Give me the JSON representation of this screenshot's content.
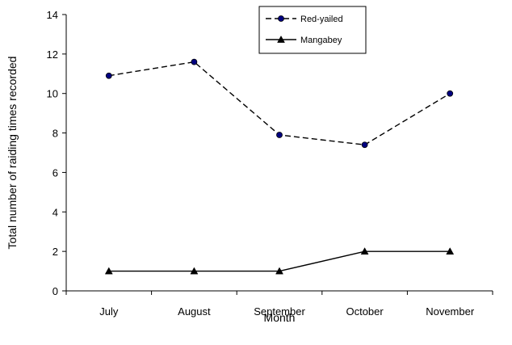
{
  "chart_data": {
    "type": "line",
    "title": "",
    "xlabel": "Month",
    "ylabel": "Total number of raiding times recorded",
    "categories": [
      "July",
      "August",
      "September",
      "October",
      "November"
    ],
    "ylim": [
      0,
      14
    ],
    "yticks": [
      0,
      2,
      4,
      6,
      8,
      10,
      12,
      14
    ],
    "grid": false,
    "legend_position": "top-right",
    "series": [
      {
        "name": "Red-yailed",
        "values": [
          10.9,
          11.6,
          7.9,
          7.4,
          10.0
        ],
        "marker": "circle",
        "line_style": "dashed",
        "line_color": "#000000",
        "marker_color": "#000080"
      },
      {
        "name": "Mangabey",
        "values": [
          1,
          1,
          1,
          2,
          2
        ],
        "marker": "triangle",
        "line_style": "solid",
        "line_color": "#000000",
        "marker_color": "#000000"
      }
    ]
  }
}
